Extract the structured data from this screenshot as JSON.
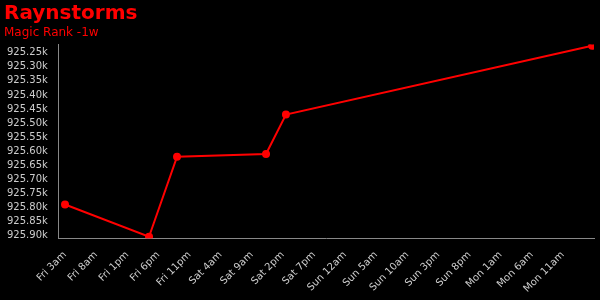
{
  "chart_data": {
    "type": "line",
    "title": "Raynstorms",
    "subtitle": "Magic Rank -1w",
    "x": [
      0,
      13.5,
      18,
      32.3,
      35.5,
      84.7
    ],
    "values": [
      925790,
      925905,
      925620,
      925610,
      925470,
      925225
    ],
    "color": "#ff0000",
    "marker": "circle",
    "grid": false,
    "xlim": [
      -1,
      85
    ],
    "xticks": [
      {
        "value": 0,
        "label": "Fri 3am"
      },
      {
        "value": 5,
        "label": "Fri 8am"
      },
      {
        "value": 10,
        "label": "Fri 1pm"
      },
      {
        "value": 15,
        "label": "Fri 6pm"
      },
      {
        "value": 20,
        "label": "Fri 11pm"
      },
      {
        "value": 25,
        "label": "Sat 4am"
      },
      {
        "value": 30,
        "label": "Sat 9am"
      },
      {
        "value": 35,
        "label": "Sat 2pm"
      },
      {
        "value": 40,
        "label": "Sat 7pm"
      },
      {
        "value": 45,
        "label": "Sun 12am"
      },
      {
        "value": 50,
        "label": "Sun 5am"
      },
      {
        "value": 55,
        "label": "Sun 10am"
      },
      {
        "value": 60,
        "label": "Sun 3pm"
      },
      {
        "value": 65,
        "label": "Sun 8pm"
      },
      {
        "value": 70,
        "label": "Mon 1am"
      },
      {
        "value": 75,
        "label": "Mon 6am"
      },
      {
        "value": 80,
        "label": "Mon 11am"
      }
    ],
    "ylim": [
      925910,
      925220
    ],
    "yticks": [
      {
        "value": 925250,
        "label": "925.25k"
      },
      {
        "value": 925300,
        "label": "925.30k"
      },
      {
        "value": 925350,
        "label": "925.35k"
      },
      {
        "value": 925400,
        "label": "925.40k"
      },
      {
        "value": 925450,
        "label": "925.45k"
      },
      {
        "value": 925500,
        "label": "925.50k"
      },
      {
        "value": 925550,
        "label": "925.55k"
      },
      {
        "value": 925600,
        "label": "925.60k"
      },
      {
        "value": 925650,
        "label": "925.65k"
      },
      {
        "value": 925700,
        "label": "925.70k"
      },
      {
        "value": 925750,
        "label": "925.75k"
      },
      {
        "value": 925800,
        "label": "925.80k"
      },
      {
        "value": 925850,
        "label": "925.85k"
      },
      {
        "value": 925900,
        "label": "925.90k"
      }
    ]
  }
}
